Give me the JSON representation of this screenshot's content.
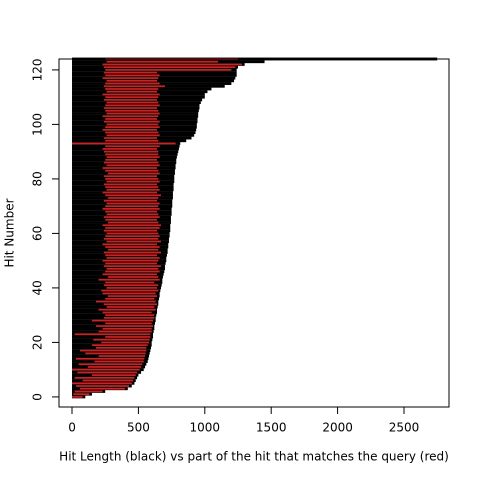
{
  "chart_data": {
    "type": "segments",
    "xlabel": "Hit Length (black) vs part of the hit that matches the query (red)",
    "ylabel": "Hit Number",
    "xlim": [
      -98,
      2839
    ],
    "ylim": [
      -3.7,
      124
    ],
    "xticks": [
      0,
      500,
      1000,
      1500,
      2000,
      2500
    ],
    "yticks": [
      0,
      20,
      40,
      60,
      80,
      100,
      120
    ],
    "y": [
      0,
      1,
      2,
      3,
      4,
      5,
      6,
      7,
      8,
      9,
      10,
      11,
      12,
      13,
      14,
      15,
      16,
      17,
      18,
      19,
      20,
      21,
      22,
      23,
      24,
      25,
      26,
      27,
      28,
      29,
      30,
      31,
      32,
      33,
      34,
      35,
      36,
      37,
      38,
      39,
      40,
      41,
      42,
      43,
      44,
      45,
      46,
      47,
      48,
      49,
      50,
      51,
      52,
      53,
      54,
      55,
      56,
      57,
      58,
      59,
      60,
      61,
      62,
      63,
      64,
      65,
      66,
      67,
      68,
      69,
      70,
      71,
      72,
      73,
      74,
      75,
      76,
      77,
      78,
      79,
      80,
      81,
      82,
      83,
      84,
      85,
      86,
      87,
      88,
      89,
      90,
      91,
      92,
      93,
      94,
      95,
      96,
      97,
      98,
      99,
      100,
      101,
      102,
      103,
      104,
      105,
      106,
      107,
      108,
      109,
      110,
      111,
      112,
      113,
      114,
      115,
      116,
      117,
      118,
      119,
      120,
      121,
      122,
      123,
      124
    ],
    "hit_length": {
      "color": "#000000",
      "values": [
        100,
        150,
        250,
        420,
        450,
        470,
        480,
        490,
        500,
        520,
        540,
        550,
        560,
        570,
        575,
        580,
        585,
        590,
        595,
        600,
        600,
        605,
        610,
        610,
        615,
        620,
        620,
        625,
        630,
        630,
        635,
        640,
        640,
        645,
        650,
        650,
        655,
        660,
        660,
        665,
        670,
        675,
        680,
        680,
        685,
        690,
        695,
        700,
        700,
        705,
        710,
        710,
        715,
        720,
        720,
        725,
        725,
        730,
        730,
        735,
        735,
        740,
        740,
        740,
        745,
        745,
        745,
        750,
        750,
        750,
        755,
        755,
        755,
        760,
        760,
        760,
        765,
        765,
        765,
        770,
        770,
        770,
        775,
        775,
        780,
        780,
        785,
        785,
        790,
        795,
        800,
        805,
        810,
        815,
        860,
        900,
        920,
        930,
        935,
        940,
        940,
        945,
        945,
        950,
        950,
        955,
        960,
        960,
        970,
        980,
        1000,
        1000,
        1020,
        1050,
        1150,
        1200,
        1220,
        1230,
        1240,
        1240,
        1240,
        1250,
        1300,
        1450,
        2750
      ]
    },
    "match": {
      "color": "#cc2222",
      "start": [
        0,
        10,
        20,
        60,
        30,
        0,
        80,
        20,
        150,
        40,
        0,
        120,
        50,
        170,
        30,
        200,
        100,
        60,
        180,
        150,
        220,
        160,
        250,
        20,
        200,
        230,
        180,
        250,
        150,
        240,
        250,
        230,
        200,
        260,
        240,
        180,
        250,
        270,
        230,
        220,
        260,
        240,
        250,
        200,
        270,
        230,
        250,
        260,
        240,
        250,
        230,
        260,
        250,
        240,
        270,
        250,
        230,
        260,
        240,
        250,
        260,
        240,
        250,
        230,
        270,
        250,
        240,
        260,
        250,
        230,
        250,
        260,
        240,
        270,
        250,
        230,
        260,
        250,
        240,
        260,
        250,
        240,
        270,
        250,
        230,
        260,
        240,
        250,
        260,
        250,
        240,
        230,
        250,
        0,
        250,
        240,
        260,
        250,
        230,
        250,
        260,
        240,
        250,
        230,
        260,
        250,
        240,
        250,
        260,
        240,
        250,
        230,
        260,
        250,
        240,
        250,
        260,
        230,
        250,
        240,
        250,
        240,
        230,
        260,
        250
      ],
      "end": [
        80,
        130,
        230,
        400,
        430,
        450,
        460,
        470,
        480,
        490,
        510,
        520,
        530,
        540,
        545,
        550,
        555,
        560,
        560,
        570,
        580,
        585,
        590,
        590,
        600,
        600,
        610,
        600,
        610,
        620,
        620,
        600,
        630,
        620,
        640,
        630,
        620,
        640,
        630,
        650,
        640,
        650,
        620,
        660,
        650,
        640,
        660,
        650,
        670,
        640,
        650,
        660,
        640,
        670,
        650,
        660,
        640,
        670,
        650,
        660,
        650,
        640,
        660,
        670,
        650,
        640,
        660,
        650,
        640,
        660,
        650,
        660,
        640,
        650,
        670,
        640,
        660,
        650,
        640,
        660,
        650,
        640,
        660,
        650,
        640,
        660,
        650,
        640,
        660,
        650,
        650,
        640,
        660,
        780,
        650,
        640,
        660,
        650,
        640,
        660,
        650,
        660,
        640,
        650,
        660,
        650,
        640,
        660,
        650,
        640,
        650,
        660,
        640,
        650,
        700,
        660,
        640,
        650,
        660,
        640,
        1200,
        1230,
        1280,
        1100,
        1250
      ]
    }
  }
}
